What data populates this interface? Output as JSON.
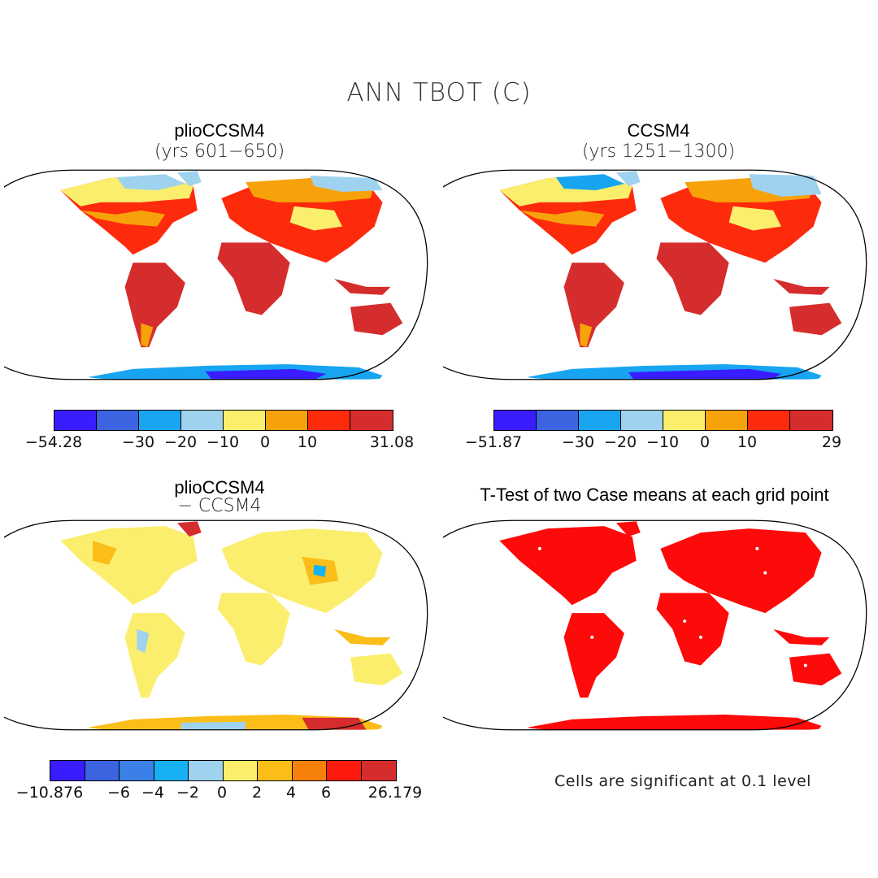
{
  "title": "ANN TBOT (C)",
  "panels": {
    "a": {
      "title": "plioCCSM4",
      "subtitle": "(yrs 601−650)"
    },
    "b": {
      "title": "CCSM4",
      "subtitle": "(yrs 1251−1300)"
    },
    "c": {
      "title": "plioCCSM4",
      "subtitle": "− CCSM4"
    },
    "d": {
      "title": "T-Test of two Case means at each grid point"
    }
  },
  "colorbars": {
    "a": {
      "colors": [
        "#3a1dff",
        "#3c63e0",
        "#17a5f2",
        "#9fd2ee",
        "#fbee6c",
        "#f7a20a",
        "#fe2a0c",
        "#d52d2d"
      ],
      "labels": [
        "−54.28",
        "−30",
        "−20",
        "−10",
        "0",
        "10",
        "31.08"
      ]
    },
    "b": {
      "colors": [
        "#3a1dff",
        "#3c63e0",
        "#17a5f2",
        "#9fd2ee",
        "#fbee6c",
        "#f7a20a",
        "#fe2a0c",
        "#d52d2d"
      ],
      "labels": [
        "−51.87",
        "−30",
        "−20",
        "−10",
        "0",
        "10",
        "29"
      ]
    },
    "c": {
      "colors": [
        "#3a1dff",
        "#3c63e0",
        "#3a80e6",
        "#17b0f2",
        "#9fd2ee",
        "#fbee6c",
        "#fbbd17",
        "#f7800a",
        "#fe1a0c",
        "#d52d2d"
      ],
      "labels": [
        "−10.876",
        "−6",
        "−4",
        "−2",
        "0",
        "2",
        "4",
        "6",
        "26.179"
      ]
    }
  },
  "note": "Cells are significant at 0.1 level"
}
